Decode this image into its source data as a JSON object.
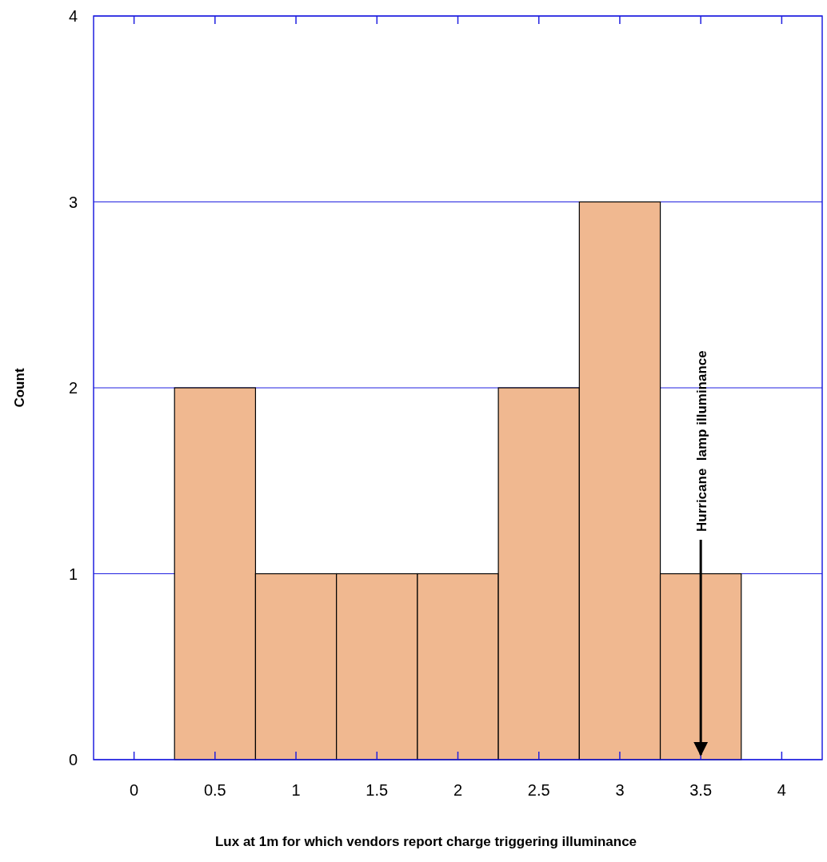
{
  "chart_data": {
    "type": "histogram",
    "xlabel": "Lux at 1m for which vendors report charge triggering illuminance",
    "ylabel": "Count",
    "bins": [
      0.25,
      0.75,
      1.25,
      1.75,
      2.25,
      2.75,
      3.25,
      3.75
    ],
    "values": [
      2,
      1,
      1,
      1,
      2,
      3,
      1
    ],
    "color": "#f0b890",
    "xlim": [
      -0.25,
      4.25
    ],
    "xticks": [
      0,
      0.5,
      1,
      1.5,
      2,
      2.5,
      3,
      3.5,
      4
    ],
    "ylim": [
      0,
      4
    ],
    "yticks": [
      0,
      1,
      2,
      3,
      4
    ],
    "grid": "y",
    "annotations": [
      {
        "text": "Hurricane  lamp illuminance",
        "x": 3.5,
        "y": 0
      }
    ]
  }
}
